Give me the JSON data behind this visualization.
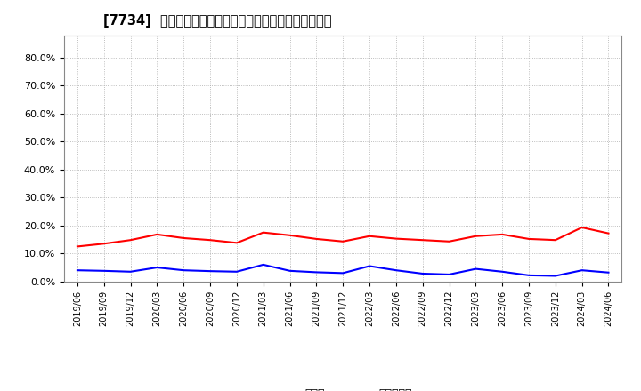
{
  "title": "[7734]  現預金、有利子負債の総資産に対する比率の推移",
  "legend_cash": "現預金",
  "legend_debt": "有利子負債",
  "color_cash": "#ff0000",
  "color_debt": "#0000ff",
  "ylim": [
    0.0,
    0.88
  ],
  "yticks": [
    0.0,
    0.1,
    0.2,
    0.3,
    0.4,
    0.5,
    0.6,
    0.7,
    0.8
  ],
  "x_labels": [
    "2019/06",
    "2019/09",
    "2019/12",
    "2020/03",
    "2020/06",
    "2020/09",
    "2020/12",
    "2021/03",
    "2021/06",
    "2021/09",
    "2021/12",
    "2022/03",
    "2022/06",
    "2022/09",
    "2022/12",
    "2023/03",
    "2023/06",
    "2023/09",
    "2023/12",
    "2024/03",
    "2024/06"
  ],
  "cash": [
    0.125,
    0.135,
    0.148,
    0.168,
    0.155,
    0.148,
    0.138,
    0.175,
    0.165,
    0.152,
    0.143,
    0.162,
    0.153,
    0.148,
    0.143,
    0.162,
    0.168,
    0.152,
    0.148,
    0.193,
    0.172
  ],
  "debt": [
    0.04,
    0.038,
    0.035,
    0.05,
    0.04,
    0.037,
    0.035,
    0.06,
    0.038,
    0.033,
    0.03,
    0.055,
    0.04,
    0.028,
    0.025,
    0.045,
    0.035,
    0.022,
    0.02,
    0.04,
    0.032
  ]
}
